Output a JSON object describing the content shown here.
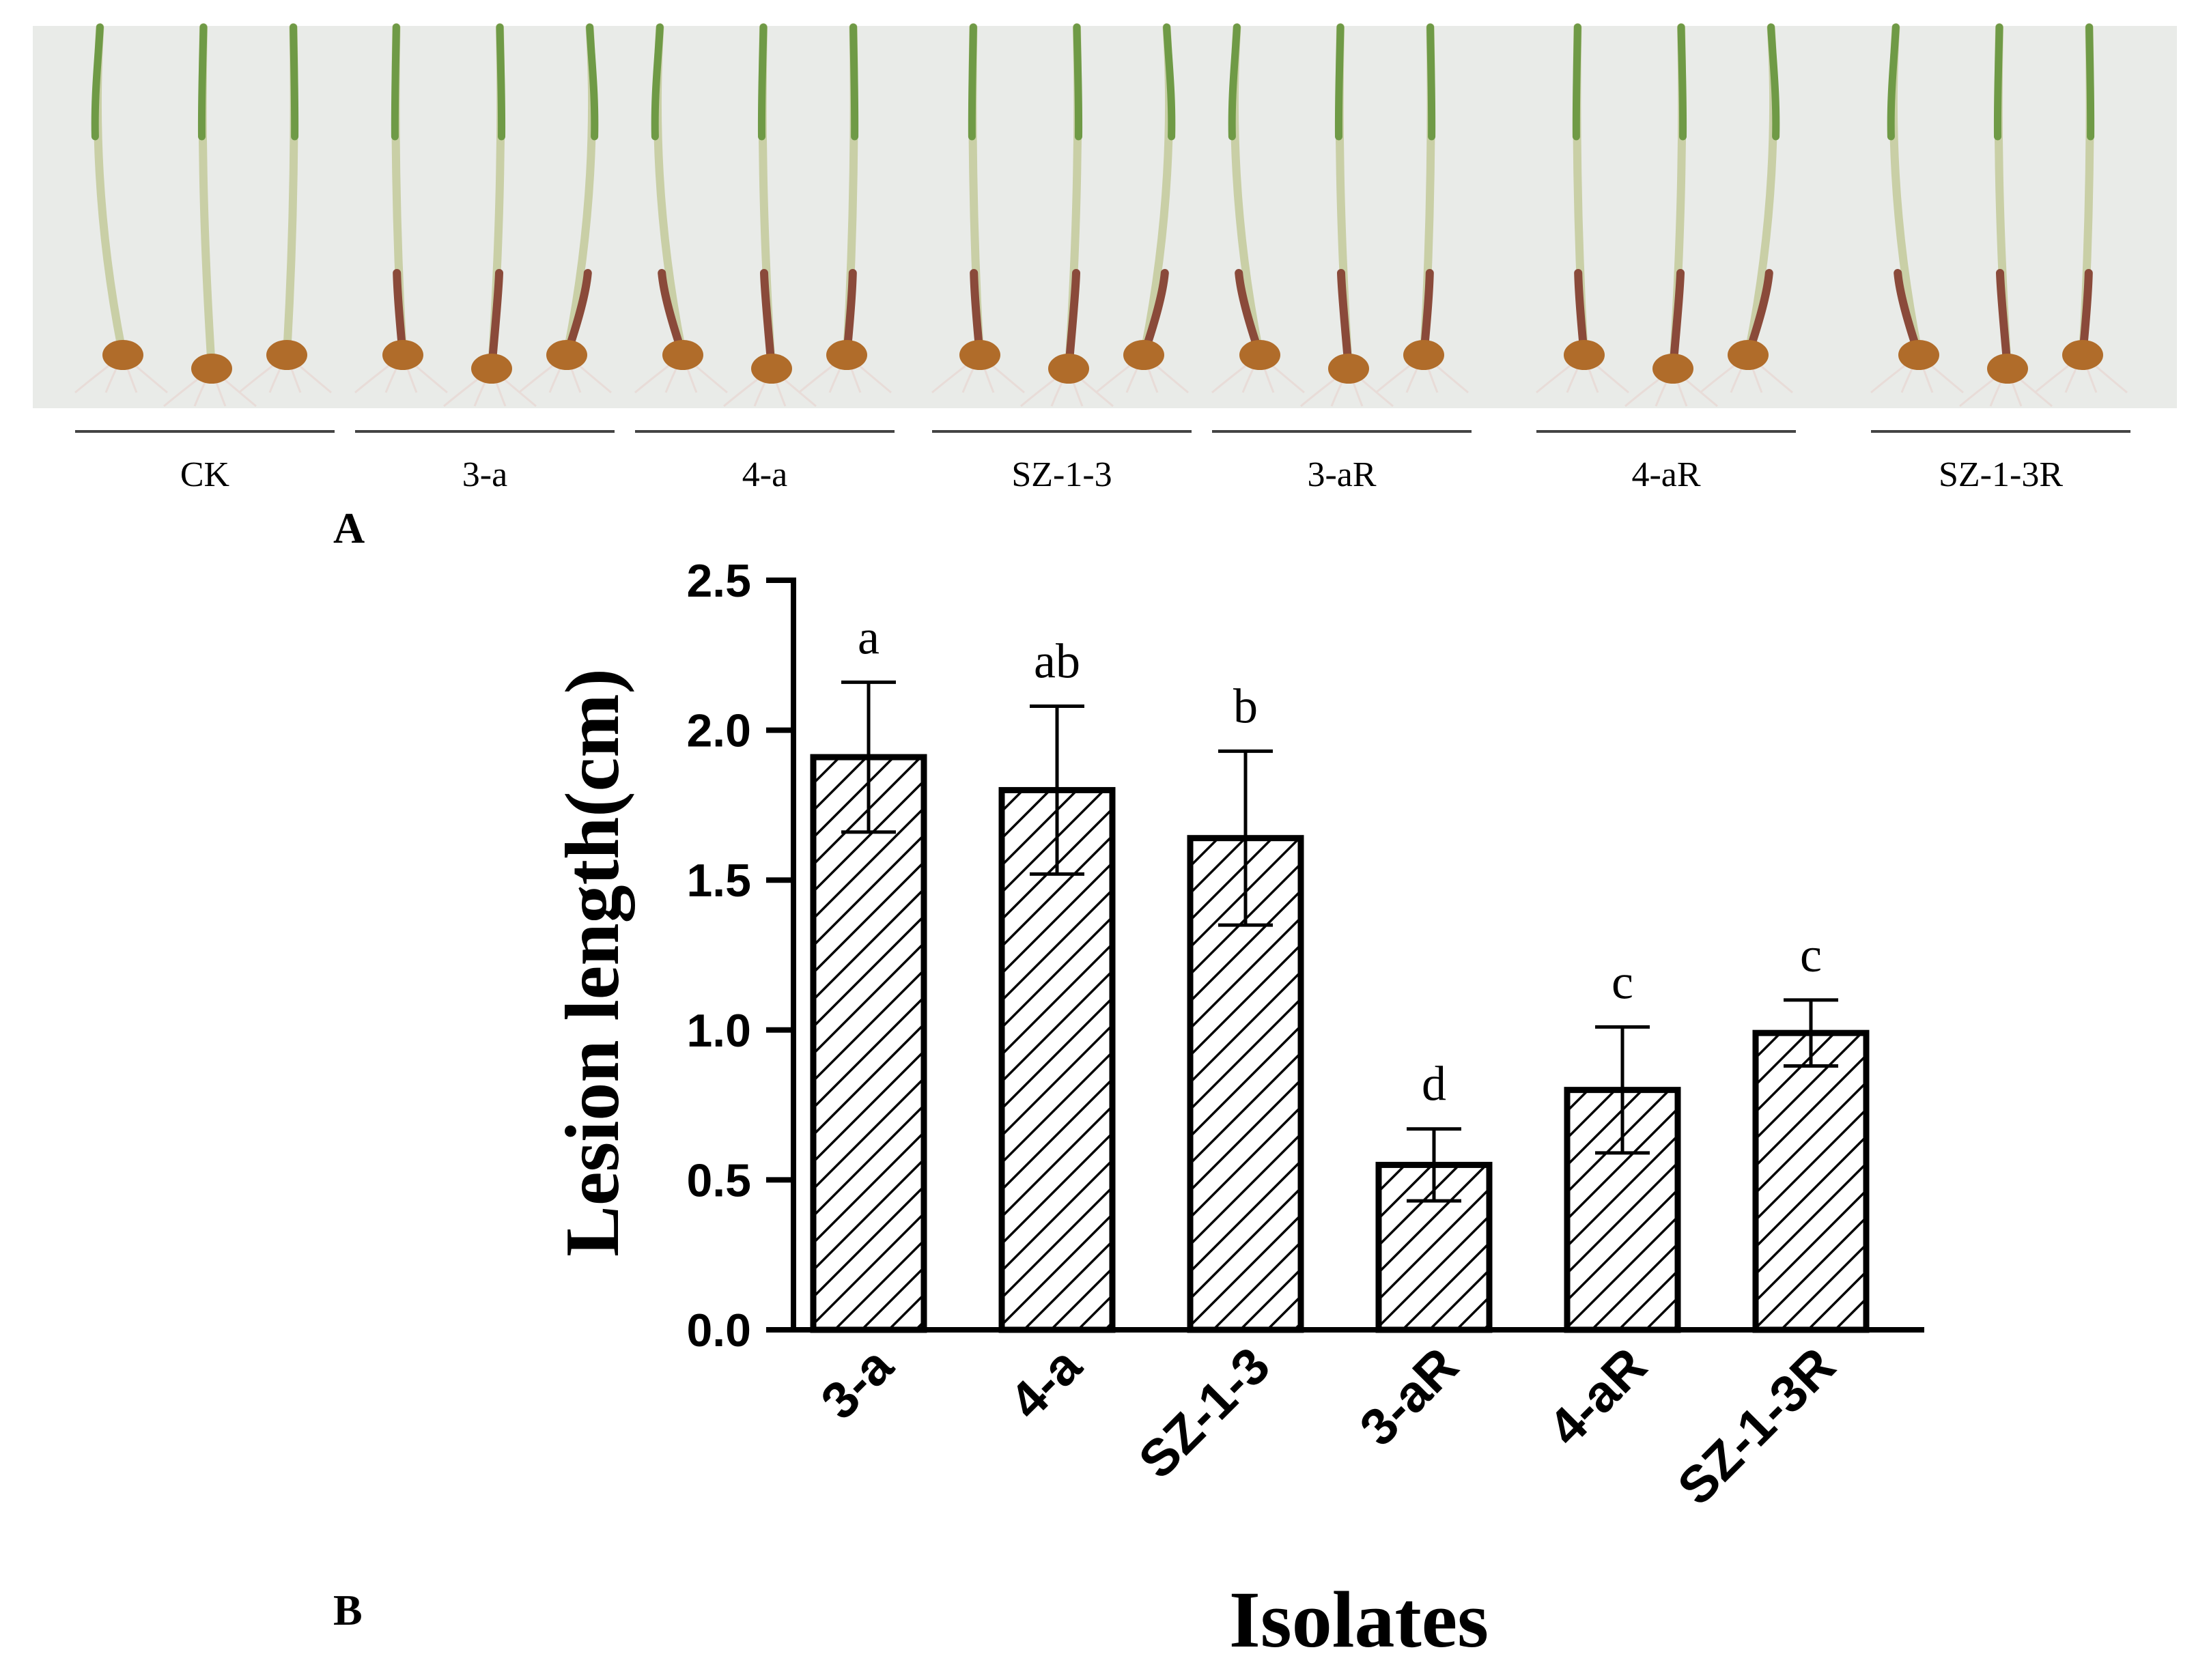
{
  "panel_a": {
    "panel_label": "A",
    "description_alt": "Rice seedlings inoculated with isolates",
    "groups": [
      "CK",
      "3-a",
      "4-a",
      "SZ-1-3",
      "3-aR",
      "4-aR",
      "SZ-1-3R"
    ],
    "colors": {
      "background": "#e9ebe8",
      "leaf": "#6f9a46",
      "stem_healthy": "#c9cfa6",
      "stem_lesion": "#8a4a3a",
      "seed": "#b06c2a",
      "root": "#e8dcd8"
    }
  },
  "panel_b": {
    "panel_label": "B"
  },
  "chart_data": {
    "type": "bar",
    "title": "",
    "xlabel": "Isolates",
    "ylabel": "Lesion length(cm)",
    "ylim": [
      0,
      2.5
    ],
    "yticks": [
      "0.0",
      "0.5",
      "1.0",
      "1.5",
      "2.0",
      "2.5"
    ],
    "categories": [
      "3-a",
      "4-a",
      "SZ-1-3",
      "3-aR",
      "4-aR",
      "SZ-1-3R"
    ],
    "values": [
      1.91,
      1.8,
      1.64,
      0.55,
      0.8,
      0.99
    ],
    "errors": [
      0.25,
      0.28,
      0.29,
      0.12,
      0.21,
      0.11
    ],
    "significance": [
      "a",
      "ab",
      "b",
      "d",
      "c",
      "c"
    ],
    "bar_fill": "hatched diagonal",
    "colors": {
      "bar_edge": "#000000",
      "hatch": "#000000",
      "axis": "#000000"
    }
  }
}
